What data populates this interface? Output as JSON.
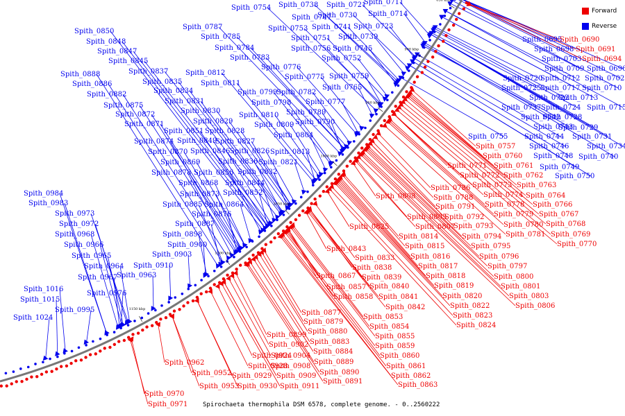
{
  "caption": "Spirochaeta thermophila DSM 6578, complete genome. - 0..2560222",
  "legend": [
    {
      "label": "Forward",
      "color": "#ee0000"
    },
    {
      "label": "Reverse",
      "color": "#0000ee"
    }
  ],
  "colors": {
    "forward": "#ee0000",
    "reverse": "#0000ee",
    "backbone": "#777777"
  },
  "ticks": [
    "850 kbp",
    "900 kbp",
    "950 kbp",
    "1000 kbp",
    "1050 kbp",
    "1100 kbp",
    "1150 kbp"
  ],
  "reverse_genes": [
    "Spith_0695",
    "Spith_0696",
    "Spith_0698",
    "Spith_0702",
    "Spith_0703",
    "Spith_0709",
    "Spith_0710",
    "Spith_0711",
    "Spith_0712",
    "Spith_0713",
    "Spith_0714",
    "Spith_0715",
    "Spith_0717",
    "Spith_0720",
    "Spith_0721",
    "Spith_0722",
    "Spith_0723",
    "Spith_0724",
    "Spith_0725",
    "Spith_0728",
    "Spith_0729",
    "Spith_0730",
    "Spith_0731",
    "Spith_0734",
    "Spith_0737",
    "Spith_0738",
    "Spith_0739",
    "Spith_0740",
    "Spith_0741",
    "Spith_0742",
    "Spith_0743",
    "Spith_0744",
    "Spith_0745",
    "Spith_0746",
    "Spith_0747",
    "Spith_0748",
    "Spith_0749",
    "Spith_0750",
    "Spith_0751",
    "Spith_0752",
    "Spith_0753",
    "Spith_0754",
    "Spith_0755",
    "Spith_0756",
    "Spith_0759",
    "Spith_0765",
    "Spith_0775",
    "Spith_0776",
    "Spith_0777",
    "Spith_0782",
    "Spith_0783",
    "Spith_0784",
    "Spith_0785",
    "Spith_0787",
    "Spith_0789",
    "Spith_0790",
    "Spith_0798",
    "Spith_0799",
    "Spith_0804",
    "Spith_0809",
    "Spith_0810",
    "Spith_0811",
    "Spith_0812",
    "Spith_0813",
    "Spith_0821",
    "Spith_0826",
    "Spith_0827",
    "Spith_0828",
    "Spith_0829",
    "Spith_0830",
    "Spith_0831",
    "Spith_0832",
    "Spith_0834",
    "Spith_0835",
    "Spith_0836",
    "Spith_0837",
    "Spith_0844",
    "Spith_0845",
    "Spith_0846",
    "Spith_0847",
    "Spith_0848",
    "Spith_0849",
    "Spith_0850",
    "Spith_0851",
    "Spith_0852",
    "Spith_0856",
    "Spith_0864",
    "Spith_0868",
    "Spith_0869",
    "Spith_0870",
    "Spith_0871",
    "Spith_0872",
    "Spith_0873",
    "Spith_0874",
    "Spith_0875",
    "Spith_0876",
    "Spith_0878",
    "Spith_0882",
    "Spith_0885",
    "Spith_0886",
    "Spith_0887",
    "Spith_0888",
    "Spith_0898",
    "Spith_0900",
    "Spith_0903",
    "Spith_0910",
    "Spith_0963",
    "Spith_0964",
    "Spith_0965",
    "Spith_0966",
    "Spith_0967",
    "Spith_0968",
    "Spith_0972",
    "Spith_0973",
    "Spith_0976",
    "Spith_0983",
    "Spith_0984",
    "Spith_0995",
    "Spith_1015",
    "Spith_1016",
    "Spith_1024"
  ],
  "forward_genes": [
    "Spith_0690",
    "Spith_0691",
    "Spith_0694",
    "Spith_0757",
    "Spith_0760",
    "Spith_0761",
    "Spith_0762",
    "Spith_0763",
    "Spith_0764",
    "Spith_0766",
    "Spith_0767",
    "Spith_0768",
    "Spith_0769",
    "Spith_0770",
    "Spith_0771",
    "Spith_0772",
    "Spith_0773",
    "Spith_0774",
    "Spith_0778",
    "Spith_0779",
    "Spith_0780",
    "Spith_0781",
    "Spith_0786",
    "Spith_0788",
    "Spith_0791",
    "Spith_0792",
    "Spith_0793",
    "Spith_0794",
    "Spith_0795",
    "Spith_0796",
    "Spith_0797",
    "Spith_0800",
    "Spith_0801",
    "Spith_0803",
    "Spith_0805",
    "Spith_0806",
    "Spith_0807",
    "Spith_0808",
    "Spith_0814",
    "Spith_0815",
    "Spith_0816",
    "Spith_0817",
    "Spith_0818",
    "Spith_0819",
    "Spith_0820",
    "Spith_0822",
    "Spith_0823",
    "Spith_0824",
    "Spith_0825",
    "Spith_0833",
    "Spith_0838",
    "Spith_0839",
    "Spith_0840",
    "Spith_0841",
    "Spith_0842",
    "Spith_0843",
    "Spith_0853",
    "Spith_0854",
    "Spith_0855",
    "Spith_0857",
    "Spith_0858",
    "Spith_0859",
    "Spith_0860",
    "Spith_0861",
    "Spith_0862",
    "Spith_0863",
    "Spith_0867",
    "Spith_0877",
    "Spith_0879",
    "Spith_0880",
    "Spith_0883",
    "Spith_0884",
    "Spith_0889",
    "Spith_0890",
    "Spith_0891",
    "Spith_0899",
    "Spith_0902",
    "Spith_0904",
    "Spith_0908",
    "Spith_0909",
    "Spith_0911",
    "Spith_0924",
    "Spith_0928",
    "Spith_0929",
    "Spith_0930",
    "Spith_0952",
    "Spith_0953",
    "Spith_0962",
    "Spith_0970",
    "Spith_0971"
  ]
}
